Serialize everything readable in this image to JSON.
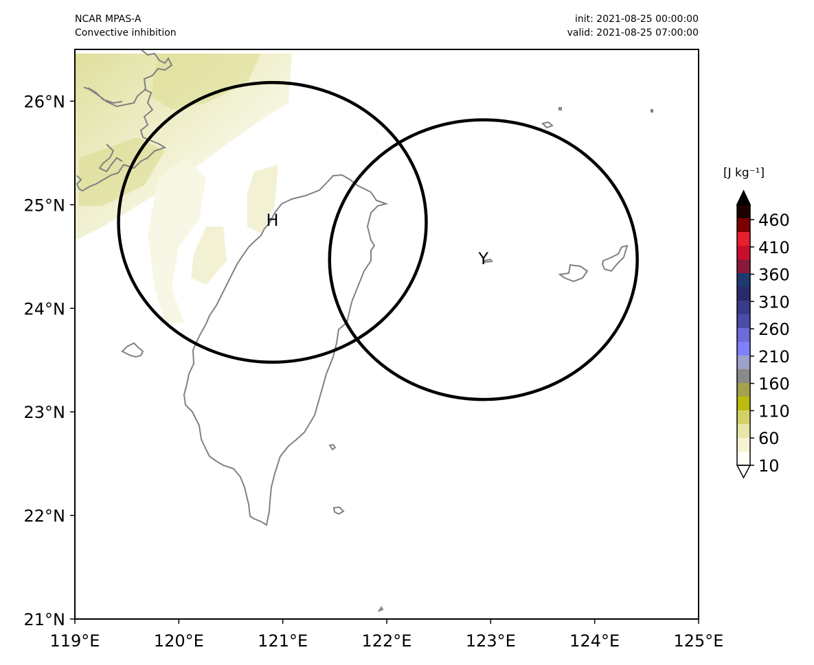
{
  "header": {
    "model": "NCAR MPAS-A",
    "field": "Convective inhibition",
    "init": "init: 2021-08-25 00:00:00",
    "valid": "valid: 2021-08-25 07:00:00"
  },
  "map": {
    "lon_range": [
      119,
      125
    ],
    "lat_range": [
      21,
      26.5
    ],
    "lon_ticks": [
      "119°E",
      "120°E",
      "121°E",
      "122°E",
      "123°E",
      "124°E",
      "125°E"
    ],
    "lat_ticks": [
      "21°N",
      "22°N",
      "23°N",
      "24°N",
      "25°N",
      "26°N"
    ],
    "coastline_color": "#808080",
    "circle_color": "#000000",
    "markers": [
      {
        "label": "H",
        "lon": 120.9,
        "lat": 24.85
      },
      {
        "label": "Y",
        "lon": 122.93,
        "lat": 24.48
      }
    ],
    "circles": [
      {
        "name": "H",
        "lon_center": 120.9,
        "lat_center": 24.83,
        "lon_radius": 1.48,
        "lat_radius": 1.35
      },
      {
        "name": "Y",
        "lon_center": 122.93,
        "lat_center": 24.47,
        "lon_radius": 1.48,
        "lat_radius": 1.35
      }
    ]
  },
  "colorbar": {
    "unit": "[J kg⁻¹]",
    "ticks": [
      "10",
      "60",
      "110",
      "160",
      "210",
      "260",
      "310",
      "360",
      "410",
      "460"
    ],
    "colors": [
      "#fffff5",
      "#f5f3d2",
      "#e8e6a8",
      "#d4d266",
      "#bcbb10",
      "#a6a14c",
      "#8a8a8a",
      "#9da0c8",
      "#8080ff",
      "#6b6bd9",
      "#4b4ba8",
      "#3a3a8a",
      "#2a2a6a",
      "#1c3a6e",
      "#8a1a3a",
      "#c8102e",
      "#e8202e",
      "#7a0000",
      "#1a0000"
    ]
  }
}
